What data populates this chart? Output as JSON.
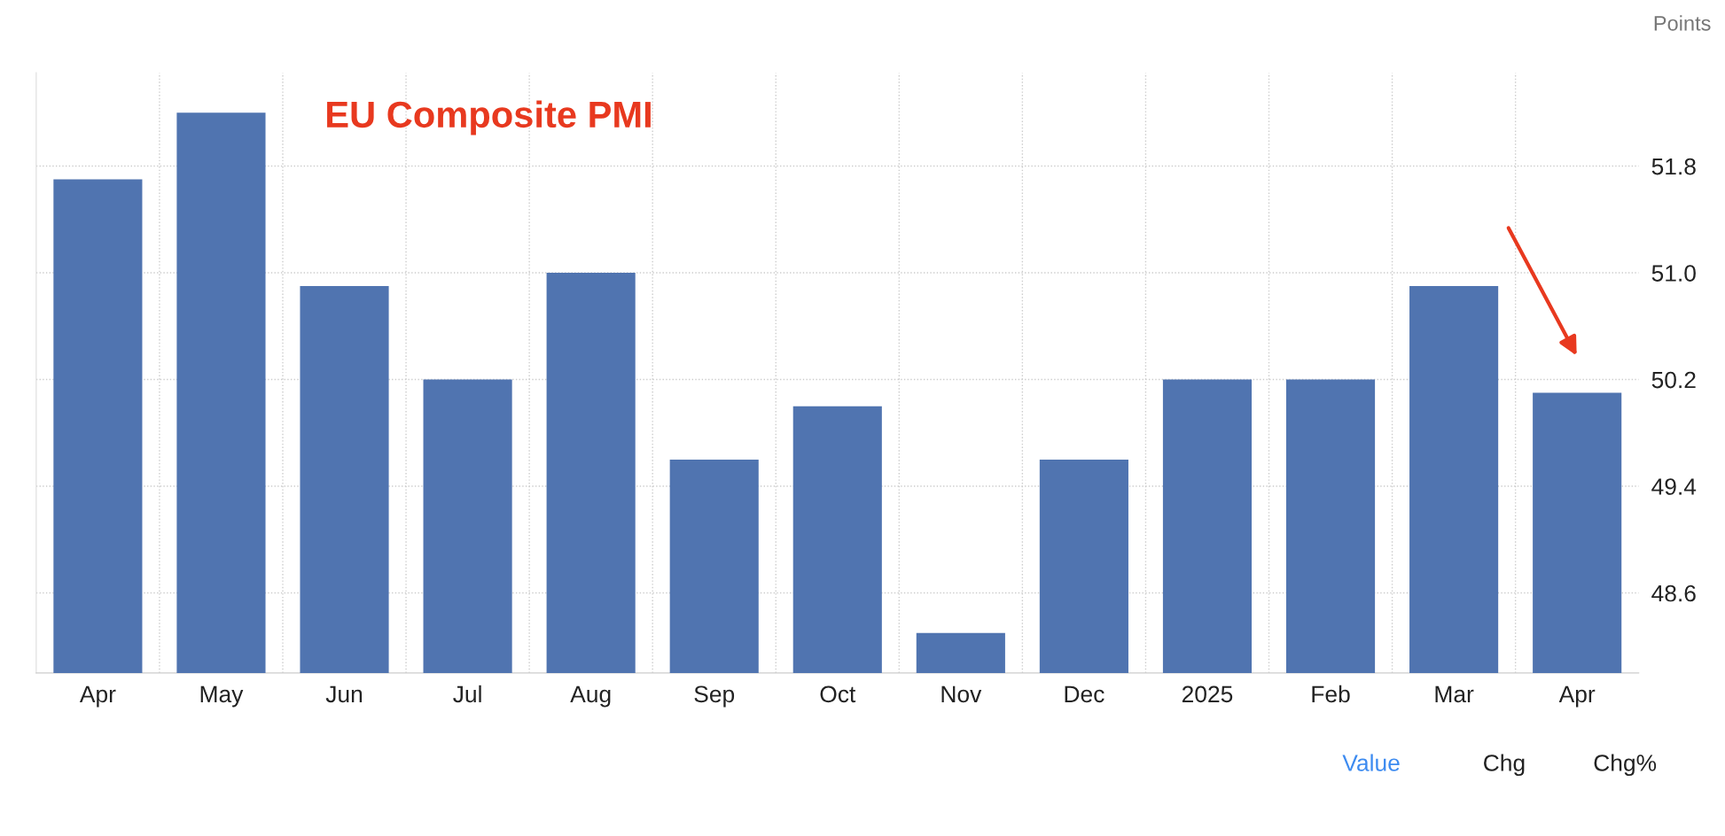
{
  "chart_data": {
    "type": "bar",
    "title": "EU Composite PMI",
    "ylabel": "Points",
    "categories": [
      "Apr",
      "May",
      "Jun",
      "Jul",
      "Aug",
      "Sep",
      "Oct",
      "Nov",
      "Dec",
      "2025",
      "Feb",
      "Mar",
      "Apr"
    ],
    "values": [
      51.7,
      52.2,
      50.9,
      50.2,
      51.0,
      49.6,
      50.0,
      48.3,
      49.6,
      50.2,
      50.2,
      50.9,
      50.1
    ],
    "color": "#5074b0",
    "ylim": [
      48.0,
      52.5
    ],
    "yticks": [
      48.6,
      49.4,
      50.2,
      {
        "value": 51.0,
        "label": "51.0"
      },
      51.8
    ],
    "grid": true,
    "annotations": [
      "Value",
      "Chg",
      "Chg%"
    ]
  }
}
